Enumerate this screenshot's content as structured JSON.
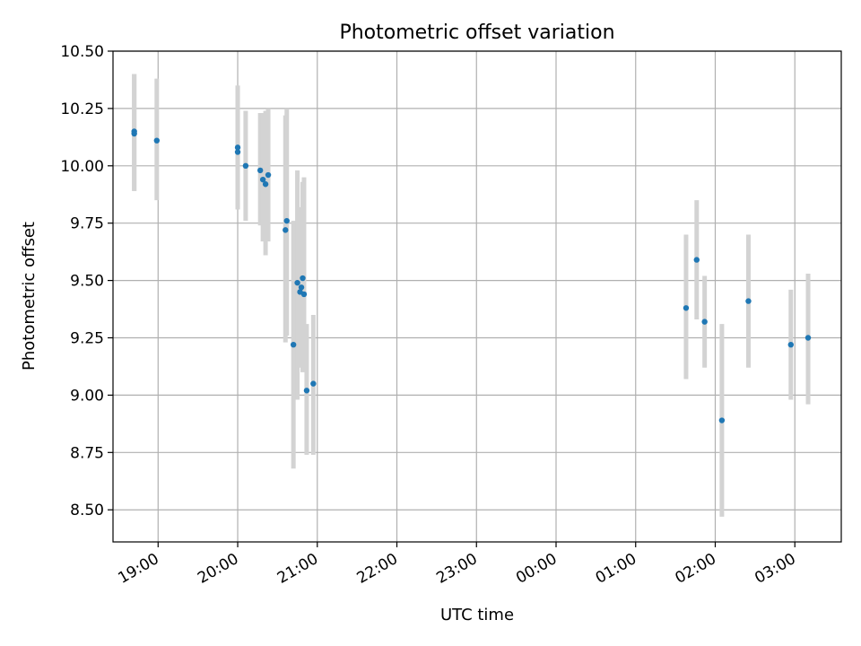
{
  "chart_data": {
    "type": "scatter",
    "title": "Photometric offset variation",
    "xlabel": "UTC time",
    "ylabel": "Photometric offset",
    "grid": true,
    "x_axis_type": "time",
    "xlim": [
      "18:26",
      "03:35"
    ],
    "ylim": [
      8.36,
      10.5
    ],
    "xticks": [
      "19:00",
      "20:00",
      "21:00",
      "22:00",
      "23:00",
      "00:00",
      "01:00",
      "02:00",
      "03:00"
    ],
    "yticks": [
      "8.50",
      "8.75",
      "9.00",
      "9.25",
      "9.50",
      "9.75",
      "10.00",
      "10.25",
      "10.50"
    ],
    "colors": {
      "points": "#1f77b4",
      "errorbars": "#d3d3d3",
      "grid": "#b0b0b0"
    },
    "points": [
      {
        "x": "18:42",
        "y": 10.15,
        "ylow": 9.89,
        "yhigh": 10.4
      },
      {
        "x": "18:42",
        "y": 10.14,
        "ylow": 9.89,
        "yhigh": 10.4
      },
      {
        "x": "18:59",
        "y": 10.11,
        "ylow": 9.85,
        "yhigh": 10.38
      },
      {
        "x": "20:00",
        "y": 10.08,
        "ylow": 9.81,
        "yhigh": 10.35
      },
      {
        "x": "20:00",
        "y": 10.06,
        "ylow": 9.81,
        "yhigh": 10.35
      },
      {
        "x": "20:06",
        "y": 10.0,
        "ylow": 9.76,
        "yhigh": 10.24
      },
      {
        "x": "20:17",
        "y": 9.98,
        "ylow": 9.74,
        "yhigh": 10.23
      },
      {
        "x": "20:19",
        "y": 9.94,
        "ylow": 9.67,
        "yhigh": 10.23
      },
      {
        "x": "20:21",
        "y": 9.92,
        "ylow": 9.61,
        "yhigh": 10.24
      },
      {
        "x": "20:23",
        "y": 9.96,
        "ylow": 9.67,
        "yhigh": 10.25
      },
      {
        "x": "20:36",
        "y": 9.72,
        "ylow": 9.23,
        "yhigh": 10.22
      },
      {
        "x": "20:37",
        "y": 9.76,
        "ylow": 9.26,
        "yhigh": 10.25
      },
      {
        "x": "20:42",
        "y": 9.22,
        "ylow": 8.68,
        "yhigh": 9.76
      },
      {
        "x": "20:45",
        "y": 9.49,
        "ylow": 8.98,
        "yhigh": 9.98
      },
      {
        "x": "20:47",
        "y": 9.45,
        "ylow": 9.14,
        "yhigh": 9.77
      },
      {
        "x": "20:48",
        "y": 9.47,
        "ylow": 9.12,
        "yhigh": 9.82
      },
      {
        "x": "20:49",
        "y": 9.51,
        "ylow": 9.1,
        "yhigh": 9.93
      },
      {
        "x": "20:50",
        "y": 9.44,
        "ylow": 9.11,
        "yhigh": 9.95
      },
      {
        "x": "20:52",
        "y": 9.02,
        "ylow": 8.74,
        "yhigh": 9.31
      },
      {
        "x": "20:57",
        "y": 9.05,
        "ylow": 8.74,
        "yhigh": 9.35
      },
      {
        "x": "01:38",
        "y": 9.38,
        "ylow": 9.07,
        "yhigh": 9.7
      },
      {
        "x": "01:46",
        "y": 9.59,
        "ylow": 9.33,
        "yhigh": 9.85
      },
      {
        "x": "01:52",
        "y": 9.32,
        "ylow": 9.12,
        "yhigh": 9.52
      },
      {
        "x": "02:05",
        "y": 8.89,
        "ylow": 8.47,
        "yhigh": 9.31
      },
      {
        "x": "02:25",
        "y": 9.41,
        "ylow": 9.12,
        "yhigh": 9.7
      },
      {
        "x": "02:57",
        "y": 9.22,
        "ylow": 8.98,
        "yhigh": 9.46
      },
      {
        "x": "03:10",
        "y": 9.25,
        "ylow": 8.96,
        "yhigh": 9.53
      }
    ]
  }
}
